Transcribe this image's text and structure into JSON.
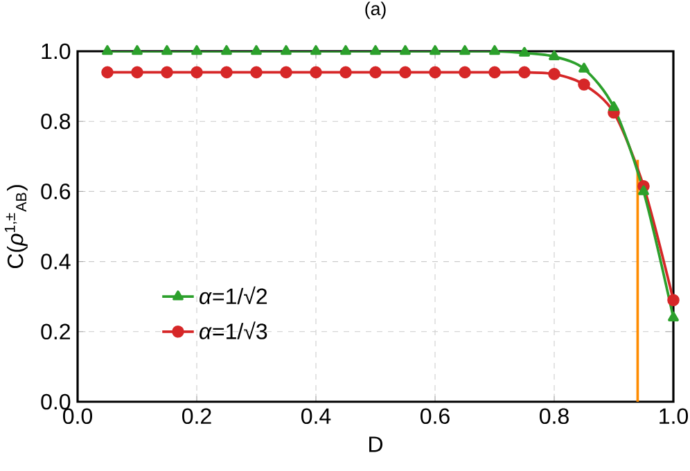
{
  "chart_data": {
    "type": "line",
    "title": "(a)",
    "xlabel": "D",
    "ylabel": "C(*ρ*$^{1,±}$$_{AB}$)",
    "xlim": [
      0,
      1
    ],
    "ylim": [
      0,
      1
    ],
    "xticks": [
      {
        "value": 0,
        "label": "0.0"
      },
      0.2,
      0.4,
      0.6,
      0.8,
      {
        "value": 1,
        "label": "1.0"
      }
    ],
    "yticks": [
      {
        "value": 0,
        "label": "0.0"
      },
      0.2,
      0.4,
      0.6,
      0.8,
      {
        "value": 1,
        "label": "1.0"
      }
    ],
    "grid": true,
    "legend": "left",
    "series": [
      {
        "name": "*α*=1/√2",
        "color": "#2ca02c",
        "marker": "triangle",
        "x": [
          0.05,
          0.1,
          0.15,
          0.2,
          0.25,
          0.3,
          0.35,
          0.4,
          0.45,
          0.5,
          0.55,
          0.6,
          0.65,
          0.7,
          0.75,
          0.8,
          0.85,
          0.9,
          0.95,
          1.0
        ],
        "values": [
          1.0,
          1.0,
          1.0,
          1.0,
          1.0,
          1.0,
          1.0,
          1.0,
          1.0,
          1.0,
          1.0,
          1.0,
          1.0,
          1.0,
          0.995,
          0.985,
          0.95,
          0.84,
          0.6,
          0.24
        ]
      },
      {
        "name": "*α*=1/√3",
        "color": "#d62728",
        "marker": "circle",
        "x": [
          0.05,
          0.1,
          0.15,
          0.2,
          0.25,
          0.3,
          0.35,
          0.4,
          0.45,
          0.5,
          0.55,
          0.6,
          0.65,
          0.7,
          0.75,
          0.8,
          0.85,
          0.9,
          0.95,
          1.0
        ],
        "values": [
          0.94,
          0.94,
          0.94,
          0.94,
          0.94,
          0.94,
          0.94,
          0.94,
          0.94,
          0.94,
          0.94,
          0.94,
          0.94,
          0.94,
          0.94,
          0.935,
          0.905,
          0.825,
          0.615,
          0.29
        ]
      },
      {
        "color": "#ff8c00",
        "marker": "none",
        "x": [
          0.94,
          0.94
        ],
        "values": [
          0,
          0.69
        ]
      }
    ]
  }
}
